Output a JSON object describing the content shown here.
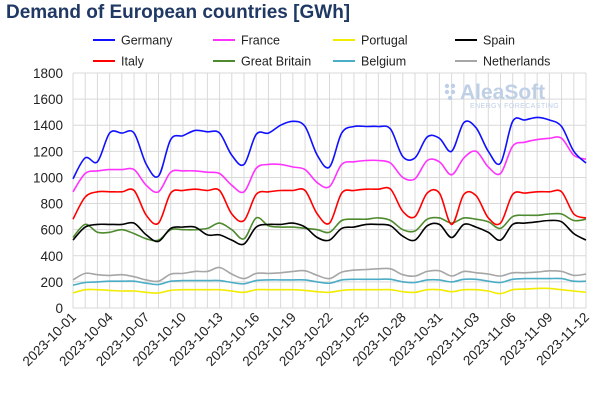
{
  "chart_data": {
    "type": "line",
    "title": "Demand of European countries [GWh]",
    "xlabel": "",
    "ylabel": "",
    "ylim": [
      0,
      1800
    ],
    "yticks": [
      0,
      200,
      400,
      600,
      800,
      1000,
      1200,
      1400,
      1600,
      1800
    ],
    "grid": true,
    "legend_position": "top",
    "watermark": {
      "brand": "AleaSoft",
      "tagline": "ENERGY FORECASTING"
    },
    "x": [
      "2023-10-01",
      "2023-10-02",
      "2023-10-03",
      "2023-10-04",
      "2023-10-05",
      "2023-10-06",
      "2023-10-07",
      "2023-10-08",
      "2023-10-09",
      "2023-10-10",
      "2023-10-11",
      "2023-10-12",
      "2023-10-13",
      "2023-10-14",
      "2023-10-15",
      "2023-10-16",
      "2023-10-17",
      "2023-10-18",
      "2023-10-19",
      "2023-10-20",
      "2023-10-21",
      "2023-10-22",
      "2023-10-23",
      "2023-10-24",
      "2023-10-25",
      "2023-10-26",
      "2023-10-27",
      "2023-10-28",
      "2023-10-29",
      "2023-10-30",
      "2023-10-31",
      "2023-11-01",
      "2023-11-02",
      "2023-11-03",
      "2023-11-04",
      "2023-11-05",
      "2023-11-06",
      "2023-11-07",
      "2023-11-08",
      "2023-11-09",
      "2023-11-10",
      "2023-11-11",
      "2023-11-12"
    ],
    "xtick_labels": [
      "2023-10-01",
      "2023-10-04",
      "2023-10-07",
      "2023-10-10",
      "2023-10-13",
      "2023-10-16",
      "2023-10-19",
      "2023-10-22",
      "2023-10-25",
      "2023-10-28",
      "2023-10-31",
      "2023-11-03",
      "2023-11-06",
      "2023-11-09",
      "2023-11-12"
    ],
    "series": [
      {
        "name": "Germany",
        "color": "#1010ff",
        "values": [
          990,
          1150,
          1120,
          1340,
          1340,
          1340,
          1100,
          1010,
          1290,
          1320,
          1360,
          1350,
          1340,
          1170,
          1100,
          1330,
          1340,
          1400,
          1430,
          1390,
          1170,
          1080,
          1340,
          1390,
          1390,
          1390,
          1370,
          1160,
          1150,
          1310,
          1300,
          1200,
          1420,
          1380,
          1200,
          1110,
          1430,
          1440,
          1460,
          1440,
          1390,
          1200,
          1110
        ]
      },
      {
        "name": "France",
        "color": "#ff33ff",
        "values": [
          890,
          1030,
          1050,
          1060,
          1060,
          1060,
          940,
          890,
          1040,
          1050,
          1050,
          1040,
          1030,
          940,
          890,
          1070,
          1100,
          1100,
          1080,
          1060,
          960,
          930,
          1100,
          1120,
          1130,
          1130,
          1110,
          1000,
          990,
          1130,
          1120,
          1020,
          1150,
          1200,
          1080,
          1030,
          1240,
          1270,
          1290,
          1300,
          1300,
          1170,
          1140
        ]
      },
      {
        "name": "Portugal",
        "color": "#f2ec00",
        "values": [
          115,
          140,
          140,
          135,
          130,
          130,
          120,
          115,
          135,
          140,
          140,
          140,
          140,
          130,
          120,
          140,
          140,
          140,
          140,
          135,
          125,
          120,
          135,
          140,
          140,
          140,
          140,
          125,
          120,
          140,
          140,
          125,
          140,
          140,
          130,
          110,
          140,
          145,
          150,
          150,
          140,
          130,
          120
        ]
      },
      {
        "name": "Spain",
        "color": "#000000",
        "values": [
          520,
          620,
          640,
          640,
          640,
          650,
          560,
          510,
          610,
          620,
          620,
          560,
          560,
          520,
          490,
          620,
          640,
          640,
          650,
          620,
          540,
          520,
          610,
          620,
          640,
          640,
          630,
          550,
          520,
          630,
          640,
          540,
          640,
          620,
          580,
          520,
          640,
          650,
          660,
          670,
          660,
          570,
          520
        ]
      },
      {
        "name": "Italy",
        "color": "#ff0000",
        "values": [
          680,
          850,
          890,
          890,
          890,
          900,
          710,
          650,
          880,
          900,
          910,
          900,
          900,
          720,
          670,
          870,
          890,
          900,
          900,
          900,
          720,
          650,
          880,
          900,
          910,
          910,
          910,
          740,
          700,
          880,
          880,
          640,
          870,
          860,
          690,
          650,
          870,
          880,
          890,
          890,
          890,
          720,
          690
        ]
      },
      {
        "name": "Great Britain",
        "color": "#4e8a2e",
        "values": [
          540,
          640,
          580,
          580,
          600,
          570,
          530,
          520,
          600,
          600,
          600,
          610,
          650,
          600,
          530,
          690,
          630,
          620,
          620,
          610,
          600,
          580,
          670,
          680,
          680,
          690,
          670,
          600,
          590,
          680,
          690,
          650,
          690,
          680,
          660,
          610,
          700,
          710,
          710,
          720,
          720,
          670,
          680
        ]
      },
      {
        "name": "Belgium",
        "color": "#4bacc6",
        "values": [
          175,
          195,
          200,
          205,
          205,
          205,
          190,
          180,
          205,
          210,
          210,
          210,
          210,
          195,
          185,
          210,
          215,
          215,
          215,
          215,
          200,
          190,
          215,
          220,
          220,
          220,
          220,
          200,
          195,
          215,
          215,
          200,
          220,
          220,
          205,
          195,
          220,
          225,
          225,
          225,
          225,
          205,
          205
        ]
      },
      {
        "name": "Netherlands",
        "color": "#a6a6a6",
        "values": [
          215,
          265,
          255,
          250,
          255,
          240,
          215,
          205,
          260,
          265,
          280,
          280,
          310,
          260,
          225,
          265,
          265,
          270,
          280,
          285,
          250,
          225,
          275,
          290,
          295,
          300,
          300,
          255,
          245,
          280,
          285,
          245,
          280,
          270,
          260,
          245,
          270,
          270,
          275,
          285,
          280,
          250,
          260
        ]
      }
    ]
  }
}
